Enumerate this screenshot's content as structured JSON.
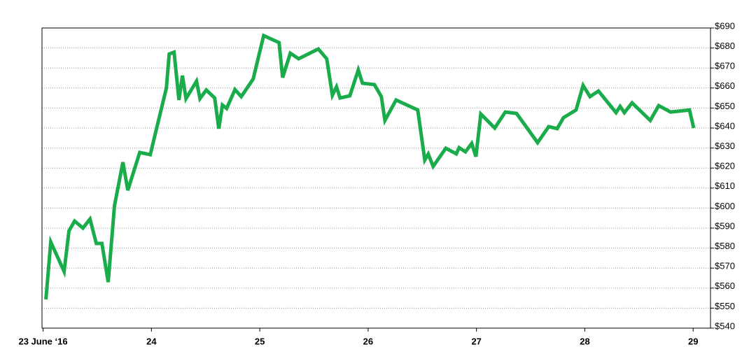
{
  "chart_data": {
    "type": "line",
    "x": [
      23.026,
      23.071,
      23.194,
      23.239,
      23.291,
      23.368,
      23.433,
      23.491,
      23.543,
      23.601,
      23.659,
      23.737,
      23.782,
      23.892,
      23.989,
      24.138,
      24.164,
      24.209,
      24.254,
      24.286,
      24.319,
      24.416,
      24.448,
      24.506,
      24.584,
      24.622,
      24.655,
      24.694,
      24.771,
      24.829,
      24.939,
      25.036,
      25.178,
      25.211,
      25.282,
      25.359,
      25.54,
      25.618,
      25.67,
      25.708,
      25.741,
      25.831,
      25.909,
      25.948,
      26.058,
      26.122,
      26.155,
      26.258,
      26.458,
      26.523,
      26.555,
      26.6,
      26.717,
      26.814,
      26.84,
      26.898,
      26.956,
      26.995,
      27.04,
      27.169,
      27.266,
      27.37,
      27.564,
      27.667,
      27.745,
      27.803,
      27.919,
      27.984,
      28.048,
      28.126,
      28.288,
      28.326,
      28.365,
      28.436,
      28.604,
      28.682,
      28.792,
      28.966,
      29.005
    ],
    "series": [
      {
        "color": "#1aab4b",
        "values": [
          554.3,
          583,
          568.3,
          588.6,
          593.5,
          590,
          594.5,
          582.3,
          582.3,
          563,
          601.2,
          622.9,
          608.9,
          627.8,
          626.7,
          660,
          677,
          677.9,
          654,
          666.2,
          654.7,
          663.4,
          654.7,
          659,
          655,
          639.7,
          651.5,
          649.8,
          659.2,
          655.7,
          664.5,
          686.2,
          682.7,
          665.2,
          677.4,
          674.6,
          679.5,
          674.6,
          656.4,
          660.6,
          655,
          656.1,
          669,
          662.4,
          661.7,
          655.7,
          643.8,
          654,
          649,
          624,
          627,
          620.8,
          629.9,
          627.1,
          630.2,
          628.1,
          632.3,
          625.7,
          647,
          640,
          648,
          647.3,
          632.7,
          640.7,
          639.7,
          645.2,
          649,
          661.3,
          655.7,
          658.5,
          647.7,
          650.8,
          647.7,
          652.6,
          643.8,
          651.2,
          648,
          649,
          640
        ]
      }
    ],
    "xlim": [
      22.99,
      29.16
    ],
    "xticks": [
      {
        "value": 23,
        "label": "23 June ‘16"
      },
      24,
      25,
      26,
      27,
      28,
      29
    ],
    "ylim": [
      540,
      690
    ],
    "yticks": [
      {
        "value": 540,
        "label": "$540"
      },
      {
        "value": 550,
        "label": "$550"
      },
      {
        "value": 560,
        "label": "$560"
      },
      {
        "value": 570,
        "label": "$570"
      },
      {
        "value": 580,
        "label": "$580"
      },
      {
        "value": 590,
        "label": "$590"
      },
      {
        "value": 600,
        "label": "$600"
      },
      {
        "value": 610,
        "label": "$610"
      },
      {
        "value": 620,
        "label": "$620"
      },
      {
        "value": 630,
        "label": "$630"
      },
      {
        "value": 640,
        "label": "$640"
      },
      {
        "value": 650,
        "label": "$650"
      },
      {
        "value": 660,
        "label": "$660"
      },
      {
        "value": 670,
        "label": "$670"
      },
      {
        "value": 680,
        "label": "$680"
      },
      {
        "value": 690,
        "label": "$690"
      }
    ],
    "grid": true
  }
}
